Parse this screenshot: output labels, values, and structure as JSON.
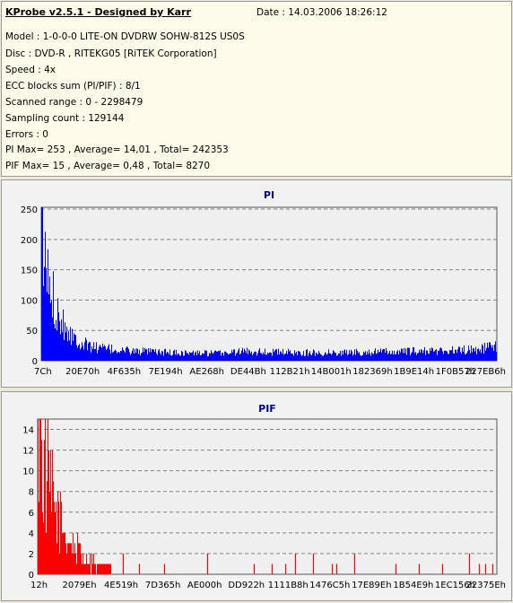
{
  "header": {
    "title": "KProbe v2.5.1 - Designed by Karr",
    "date": "Date : 14.03.2006 18:26:12"
  },
  "info_lines": [
    "Model : 1-0-0-0 LITE-ON DVDRW SOHW-812S  US0S",
    "Disc : DVD-R , RITEKG05 [RiTEK Corporation]",
    "Speed : 4x",
    "ECC blocks sum (PI/PIF) : 8/1",
    "Scanned range : 0 - 2298479",
    "Sampling count : 129144",
    "Errors : 0",
    "PI Max= 253 , Average= 14,01 , Total= 242353",
    "PIF Max= 15 , Average= 0,48 , Total= 8270"
  ],
  "colors": {
    "pi_series": "#0000ff",
    "pif_series": "#ff0000",
    "title_text": "#00008b",
    "plot_bg": "#f0f0f0",
    "gridline": "#808080"
  },
  "chart_data": [
    {
      "type": "bar",
      "title": "PI",
      "xlabel": "",
      "ylabel": "",
      "ylim": [
        0,
        253
      ],
      "y_ticks": [
        "250",
        "200",
        "150",
        "100",
        "50",
        "0"
      ],
      "y_tick_values": [
        250,
        200,
        150,
        100,
        50,
        0
      ],
      "grid": true,
      "x_ticks": [
        "7Ch",
        "20E70h",
        "4F635h",
        "7E194h",
        "AE268h",
        "DE44Bh",
        "112B21h",
        "14B001h",
        "182369h",
        "1B9E14h",
        "1F0B57h",
        "227EB6h"
      ],
      "x_range_hex": [
        "7C",
        "22AA6F"
      ],
      "series": [
        {
          "values_profile": [
            [
              0.0,
              253
            ],
            [
              0.004,
              170
            ],
            [
              0.01,
              150
            ],
            [
              0.02,
              115
            ],
            [
              0.035,
              85
            ],
            [
              0.05,
              60
            ],
            [
              0.07,
              40
            ],
            [
              0.09,
              28
            ],
            [
              0.12,
              22
            ],
            [
              0.16,
              18
            ],
            [
              0.22,
              15
            ],
            [
              0.3,
              13
            ],
            [
              0.38,
              12
            ],
            [
              0.42,
              14
            ],
            [
              0.45,
              16
            ],
            [
              0.52,
              14
            ],
            [
              0.6,
              13
            ],
            [
              0.7,
              14
            ],
            [
              0.8,
              15
            ],
            [
              0.9,
              17
            ],
            [
              0.96,
              19
            ],
            [
              1.0,
              25
            ]
          ]
        }
      ]
    },
    {
      "type": "bar",
      "title": "PIF",
      "xlabel": "",
      "ylabel": "",
      "ylim": [
        0,
        15
      ],
      "y_ticks": [
        "14",
        "12",
        "10",
        "8",
        "6",
        "4",
        "2",
        "0"
      ],
      "y_tick_values": [
        14,
        12,
        10,
        8,
        6,
        4,
        2,
        0
      ],
      "grid": true,
      "x_ticks": [
        "12h",
        "2079Eh",
        "4E519h",
        "7D365h",
        "AE000h",
        "DD922h",
        "1111B8h",
        "1476C5h",
        "17E89Eh",
        "1B54E9h",
        "1EC156h",
        "22375Eh"
      ],
      "x_range_hex": [
        "12",
        "22A0D5"
      ],
      "series": [
        {
          "values_profile": [
            [
              0.0,
              15
            ],
            [
              0.01,
              12
            ],
            [
              0.02,
              10
            ],
            [
              0.03,
              8
            ],
            [
              0.045,
              6
            ],
            [
              0.06,
              4
            ],
            [
              0.08,
              3
            ],
            [
              0.1,
              2
            ],
            [
              0.13,
              1
            ],
            [
              0.16,
              1
            ]
          ],
          "sparse_spikes": [
            [
              0.185,
              2
            ],
            [
              0.22,
              1
            ],
            [
              0.275,
              1
            ],
            [
              0.37,
              2
            ],
            [
              0.47,
              1
            ],
            [
              0.51,
              1
            ],
            [
              0.54,
              1
            ],
            [
              0.56,
              2
            ],
            [
              0.6,
              2
            ],
            [
              0.64,
              1
            ],
            [
              0.65,
              1
            ],
            [
              0.69,
              2
            ],
            [
              0.78,
              1
            ],
            [
              0.83,
              1
            ],
            [
              0.88,
              1
            ],
            [
              0.94,
              2
            ],
            [
              0.96,
              1
            ],
            [
              0.975,
              1
            ],
            [
              0.99,
              1
            ]
          ]
        }
      ]
    }
  ]
}
